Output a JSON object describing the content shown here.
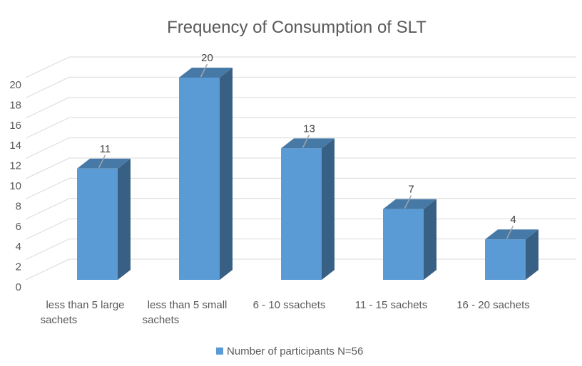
{
  "chart_data": {
    "type": "bar",
    "title": "Frequency of Consumption of SLT",
    "categories": [
      [
        "less than 5 large",
        "sachets"
      ],
      [
        "less than 5 small",
        "sachets"
      ],
      [
        "6 - 10 ssachets"
      ],
      [
        "11 - 15 sachets"
      ],
      [
        "16 - 20 sachets"
      ]
    ],
    "series": [
      {
        "name": "Number of participants N=56",
        "values": [
          11,
          20,
          13,
          7,
          4
        ],
        "color": "#5b9bd5"
      }
    ],
    "yticks": [
      "0",
      "2",
      "4",
      "6",
      "8",
      "10",
      "12",
      "14",
      "16",
      "18",
      "20"
    ],
    "ylim": [
      0,
      22
    ],
    "grid": true,
    "legend_position": "bottom",
    "style": "3d-column"
  }
}
